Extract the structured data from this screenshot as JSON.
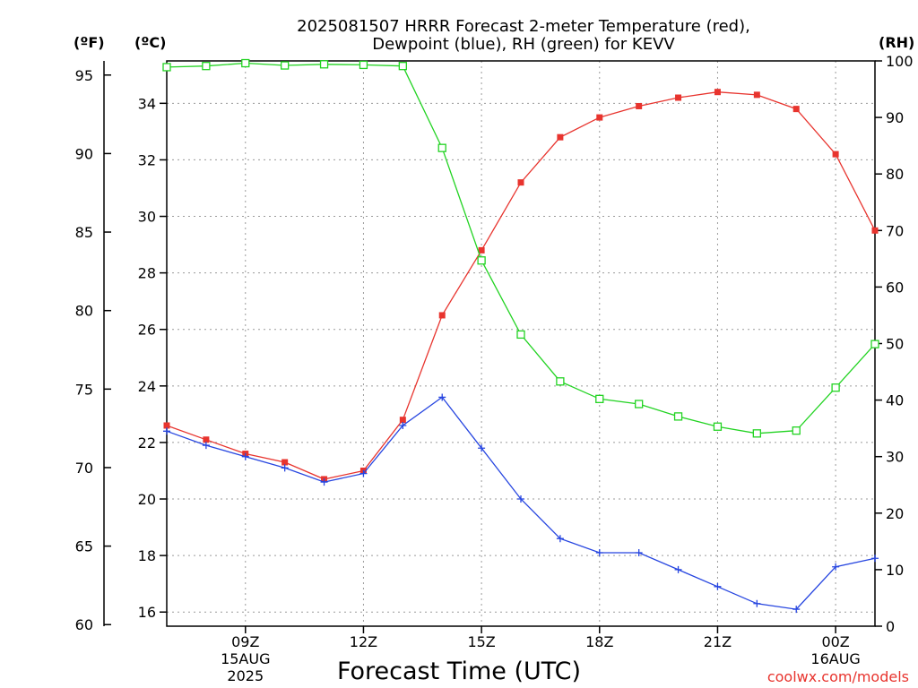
{
  "chart_data": {
    "type": "line",
    "title_lines": [
      "2025081507 HRRR Forecast 2-meter Temperature (red),",
      "Dewpoint (blue), RH (green) for KEVV"
    ],
    "xlabel": "Forecast Time (UTC)",
    "credit": "coolwx.com/models",
    "units": {
      "fahrenheit": "(ºF)",
      "celsius": "(ºC)",
      "rh": "(RH)"
    },
    "grid": true,
    "x_hours": [
      7,
      8,
      9,
      10,
      11,
      12,
      13,
      14,
      15,
      16,
      17,
      18,
      19,
      20,
      21,
      22,
      23,
      24,
      25
    ],
    "xlim": [
      7,
      25
    ],
    "x_ticks": [
      {
        "hour": 9,
        "lines": [
          "09Z",
          "15AUG",
          "2025"
        ]
      },
      {
        "hour": 12,
        "lines": [
          "12Z"
        ]
      },
      {
        "hour": 15,
        "lines": [
          "15Z"
        ]
      },
      {
        "hour": 18,
        "lines": [
          "18Z"
        ]
      },
      {
        "hour": 21,
        "lines": [
          "21Z"
        ]
      },
      {
        "hour": 24,
        "lines": [
          "00Z",
          "16AUG"
        ]
      }
    ],
    "celsius_axis": {
      "ylim": [
        15.5,
        35.5
      ],
      "ticks": [
        "16",
        "18",
        "20",
        "22",
        "24",
        "26",
        "28",
        "30",
        "32",
        "34"
      ]
    },
    "fahrenheit_axis": {
      "ticks": [
        "60",
        "65",
        "70",
        "75",
        "80",
        "85",
        "90",
        "95"
      ]
    },
    "rh_axis": {
      "ylim": [
        0,
        100
      ],
      "ticks": [
        "0",
        "10",
        "20",
        "30",
        "40",
        "50",
        "60",
        "70",
        "80",
        "90",
        "100"
      ]
    },
    "series": [
      {
        "name": "Temperature",
        "axis": "celsius",
        "color": "#e8342e",
        "marker": "filled-square",
        "values": [
          22.6,
          22.1,
          21.6,
          21.3,
          20.7,
          21.0,
          22.8,
          26.5,
          28.8,
          31.2,
          32.8,
          33.5,
          33.9,
          34.2,
          34.4,
          34.3,
          33.8,
          32.2,
          29.5
        ]
      },
      {
        "name": "Dewpoint",
        "axis": "celsius",
        "color": "#2645e0",
        "marker": "plus",
        "values": [
          22.4,
          21.9,
          21.5,
          21.1,
          20.6,
          20.9,
          22.6,
          23.6,
          21.8,
          20.0,
          18.6,
          18.1,
          18.1,
          17.5,
          16.9,
          16.3,
          16.1,
          17.6,
          17.9
        ]
      },
      {
        "name": "RH",
        "axis": "rh",
        "color": "#22d322",
        "marker": "open-square",
        "values": [
          98.9,
          99.1,
          99.6,
          99.2,
          99.4,
          99.3,
          99.1,
          84.6,
          64.7,
          51.6,
          43.3,
          40.2,
          39.3,
          37.1,
          35.3,
          34.1,
          34.6,
          42.2,
          49.9
        ]
      }
    ]
  }
}
